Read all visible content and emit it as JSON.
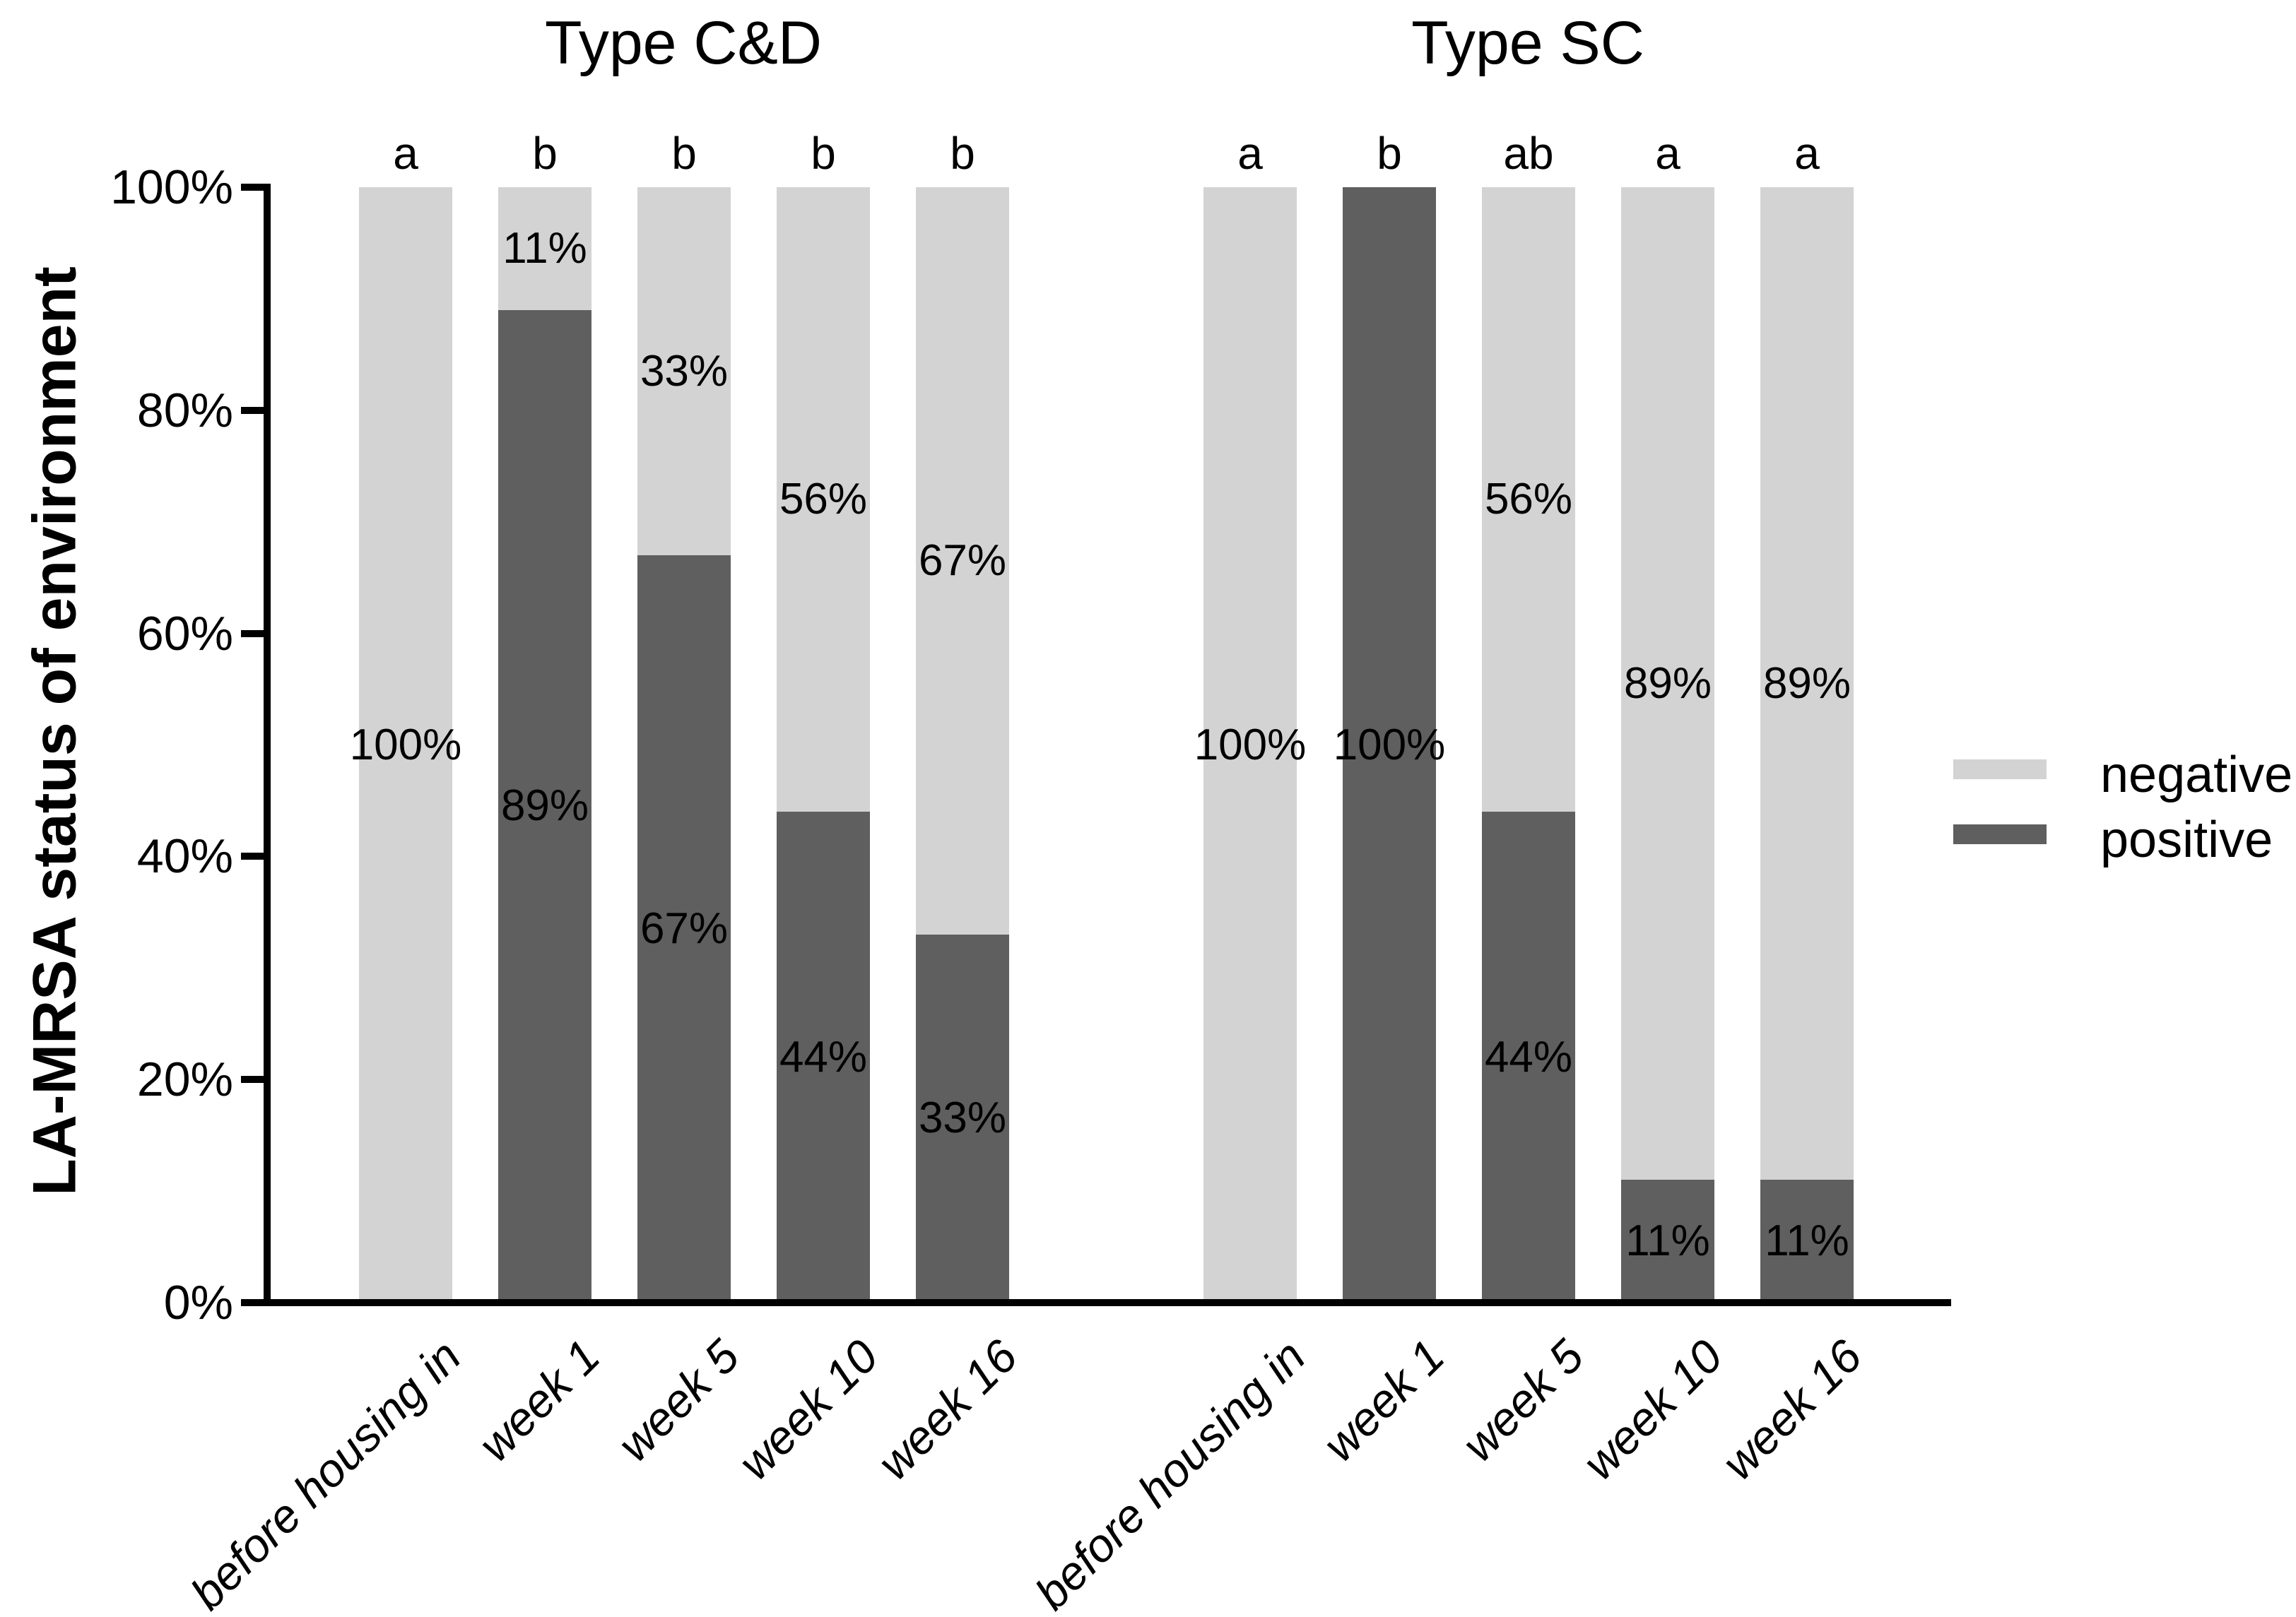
{
  "chart_data": {
    "type": "bar",
    "variant": "stacked-percent",
    "ylabel": "LA-MRSA status of environment",
    "ylim": [
      0,
      100
    ],
    "y_tick_values": [
      0,
      20,
      40,
      60,
      80,
      100
    ],
    "y_tick_labels": [
      "0%",
      "20%",
      "40%",
      "60%",
      "80%",
      "100%"
    ],
    "categories": [
      "before housing in",
      "week 1",
      "week 5",
      "week 10",
      "week 16"
    ],
    "series_names": [
      "negative",
      "positive"
    ],
    "colors": {
      "negative": "#d3d3d3",
      "positive": "#5f5f5f"
    },
    "grid": false,
    "groups": [
      {
        "title": "Type C&D",
        "significance_letters": [
          "a",
          "b",
          "b",
          "b",
          "b"
        ],
        "series": [
          {
            "name": "positive",
            "values": [
              0,
              89,
              67,
              44,
              33
            ]
          },
          {
            "name": "negative",
            "values": [
              100,
              11,
              33,
              56,
              67
            ]
          }
        ]
      },
      {
        "title": "Type SC",
        "significance_letters": [
          "a",
          "b",
          "ab",
          "a",
          "a"
        ],
        "series": [
          {
            "name": "positive",
            "values": [
              0,
              100,
              44,
              11,
              11
            ]
          },
          {
            "name": "negative",
            "values": [
              100,
              0,
              56,
              89,
              89
            ]
          }
        ]
      }
    ],
    "bar_value_labels": "percentage shown centered inside every nonzero segment, e.g. 100%, 89%, 11%",
    "legend": {
      "position": "right",
      "entries": [
        {
          "label": "negative",
          "color": "#d3d3d3"
        },
        {
          "label": "positive",
          "color": "#5f5f5f"
        }
      ]
    }
  }
}
